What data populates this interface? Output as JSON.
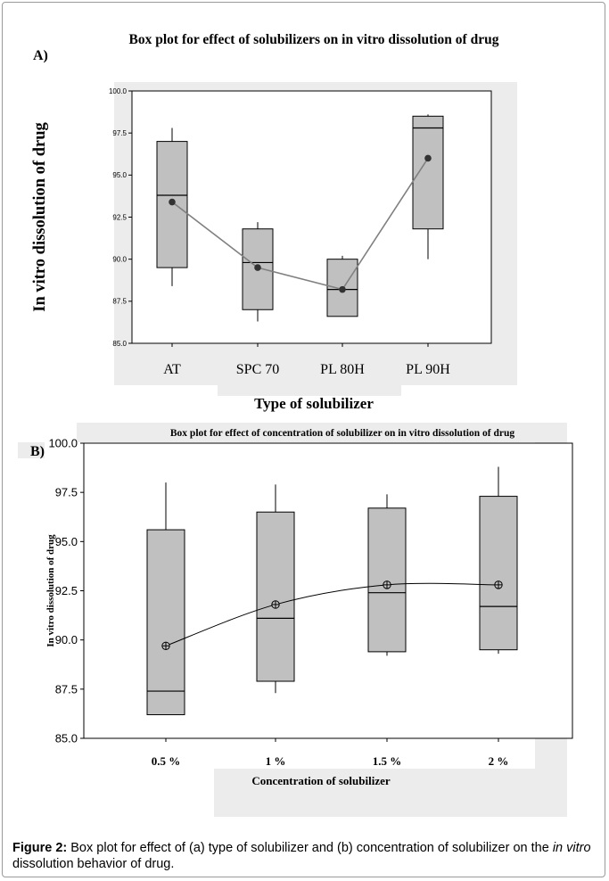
{
  "figure": {
    "caption_label": "Figure 2:",
    "caption_part1": "Box plot for effect of (a) type of solubilizer and (b) concentration of solubilizer on the ",
    "caption_italic": "in vitro",
    "caption_part2": " dissolution behavior of drug.",
    "colors": {
      "box_fill": "#c0c0c0",
      "mean_line": "#808080",
      "background_band": "#ececec"
    }
  },
  "chart_data": [
    {
      "panel_label": "A)",
      "type": "box",
      "title": "Box plot for effect of solubilizers on in vitro dissolution of drug",
      "xlabel": "Type of solubilizer",
      "ylabel": "In vitro dissolution of drug",
      "categories": [
        "AT",
        "SPC 70",
        "PL 80H",
        "PL 90H"
      ],
      "ylim": [
        85.0,
        100.0
      ],
      "yticks": [
        "85.0",
        "87.5",
        "90.0",
        "92.5",
        "95.0",
        "97.5",
        "100.0"
      ],
      "boxes": [
        {
          "min": 88.4,
          "q1": 89.5,
          "median": 93.8,
          "q3": 97.0,
          "max": 97.8,
          "mean": 93.4
        },
        {
          "min": 86.3,
          "q1": 87.0,
          "median": 89.8,
          "q3": 91.8,
          "max": 92.2,
          "mean": 89.5
        },
        {
          "min": 86.6,
          "q1": 86.6,
          "median": 88.2,
          "q3": 90.0,
          "max": 90.2,
          "mean": 88.2
        },
        {
          "min": 90.0,
          "q1": 91.8,
          "median": 97.8,
          "q3": 98.5,
          "max": 98.6,
          "mean": 96.0
        }
      ]
    },
    {
      "panel_label": "B)",
      "type": "box",
      "title": "Box plot for effect of concentration of solubilizer on in vitro dissolution of drug",
      "xlabel": "Concentration of solubilizer",
      "ylabel": "In vitro dissolution of drug",
      "categories": [
        "0.5 %",
        "1 %",
        "1.5 %",
        "2 %"
      ],
      "ylim": [
        85.0,
        100.0
      ],
      "yticks": [
        "85.0",
        "87.5",
        "90.0",
        "92.5",
        "95.0",
        "97.5",
        "100.0"
      ],
      "boxes": [
        {
          "min": 86.2,
          "q1": 86.2,
          "median": 87.4,
          "q3": 95.6,
          "max": 98.0,
          "mean": 89.7
        },
        {
          "min": 87.3,
          "q1": 87.9,
          "median": 91.1,
          "q3": 96.5,
          "max": 97.9,
          "mean": 91.8
        },
        {
          "min": 89.2,
          "q1": 89.4,
          "median": 92.4,
          "q3": 96.7,
          "max": 97.4,
          "mean": 92.8
        },
        {
          "min": 89.3,
          "q1": 89.5,
          "median": 91.7,
          "q3": 97.3,
          "max": 98.8,
          "mean": 92.8
        }
      ]
    }
  ]
}
